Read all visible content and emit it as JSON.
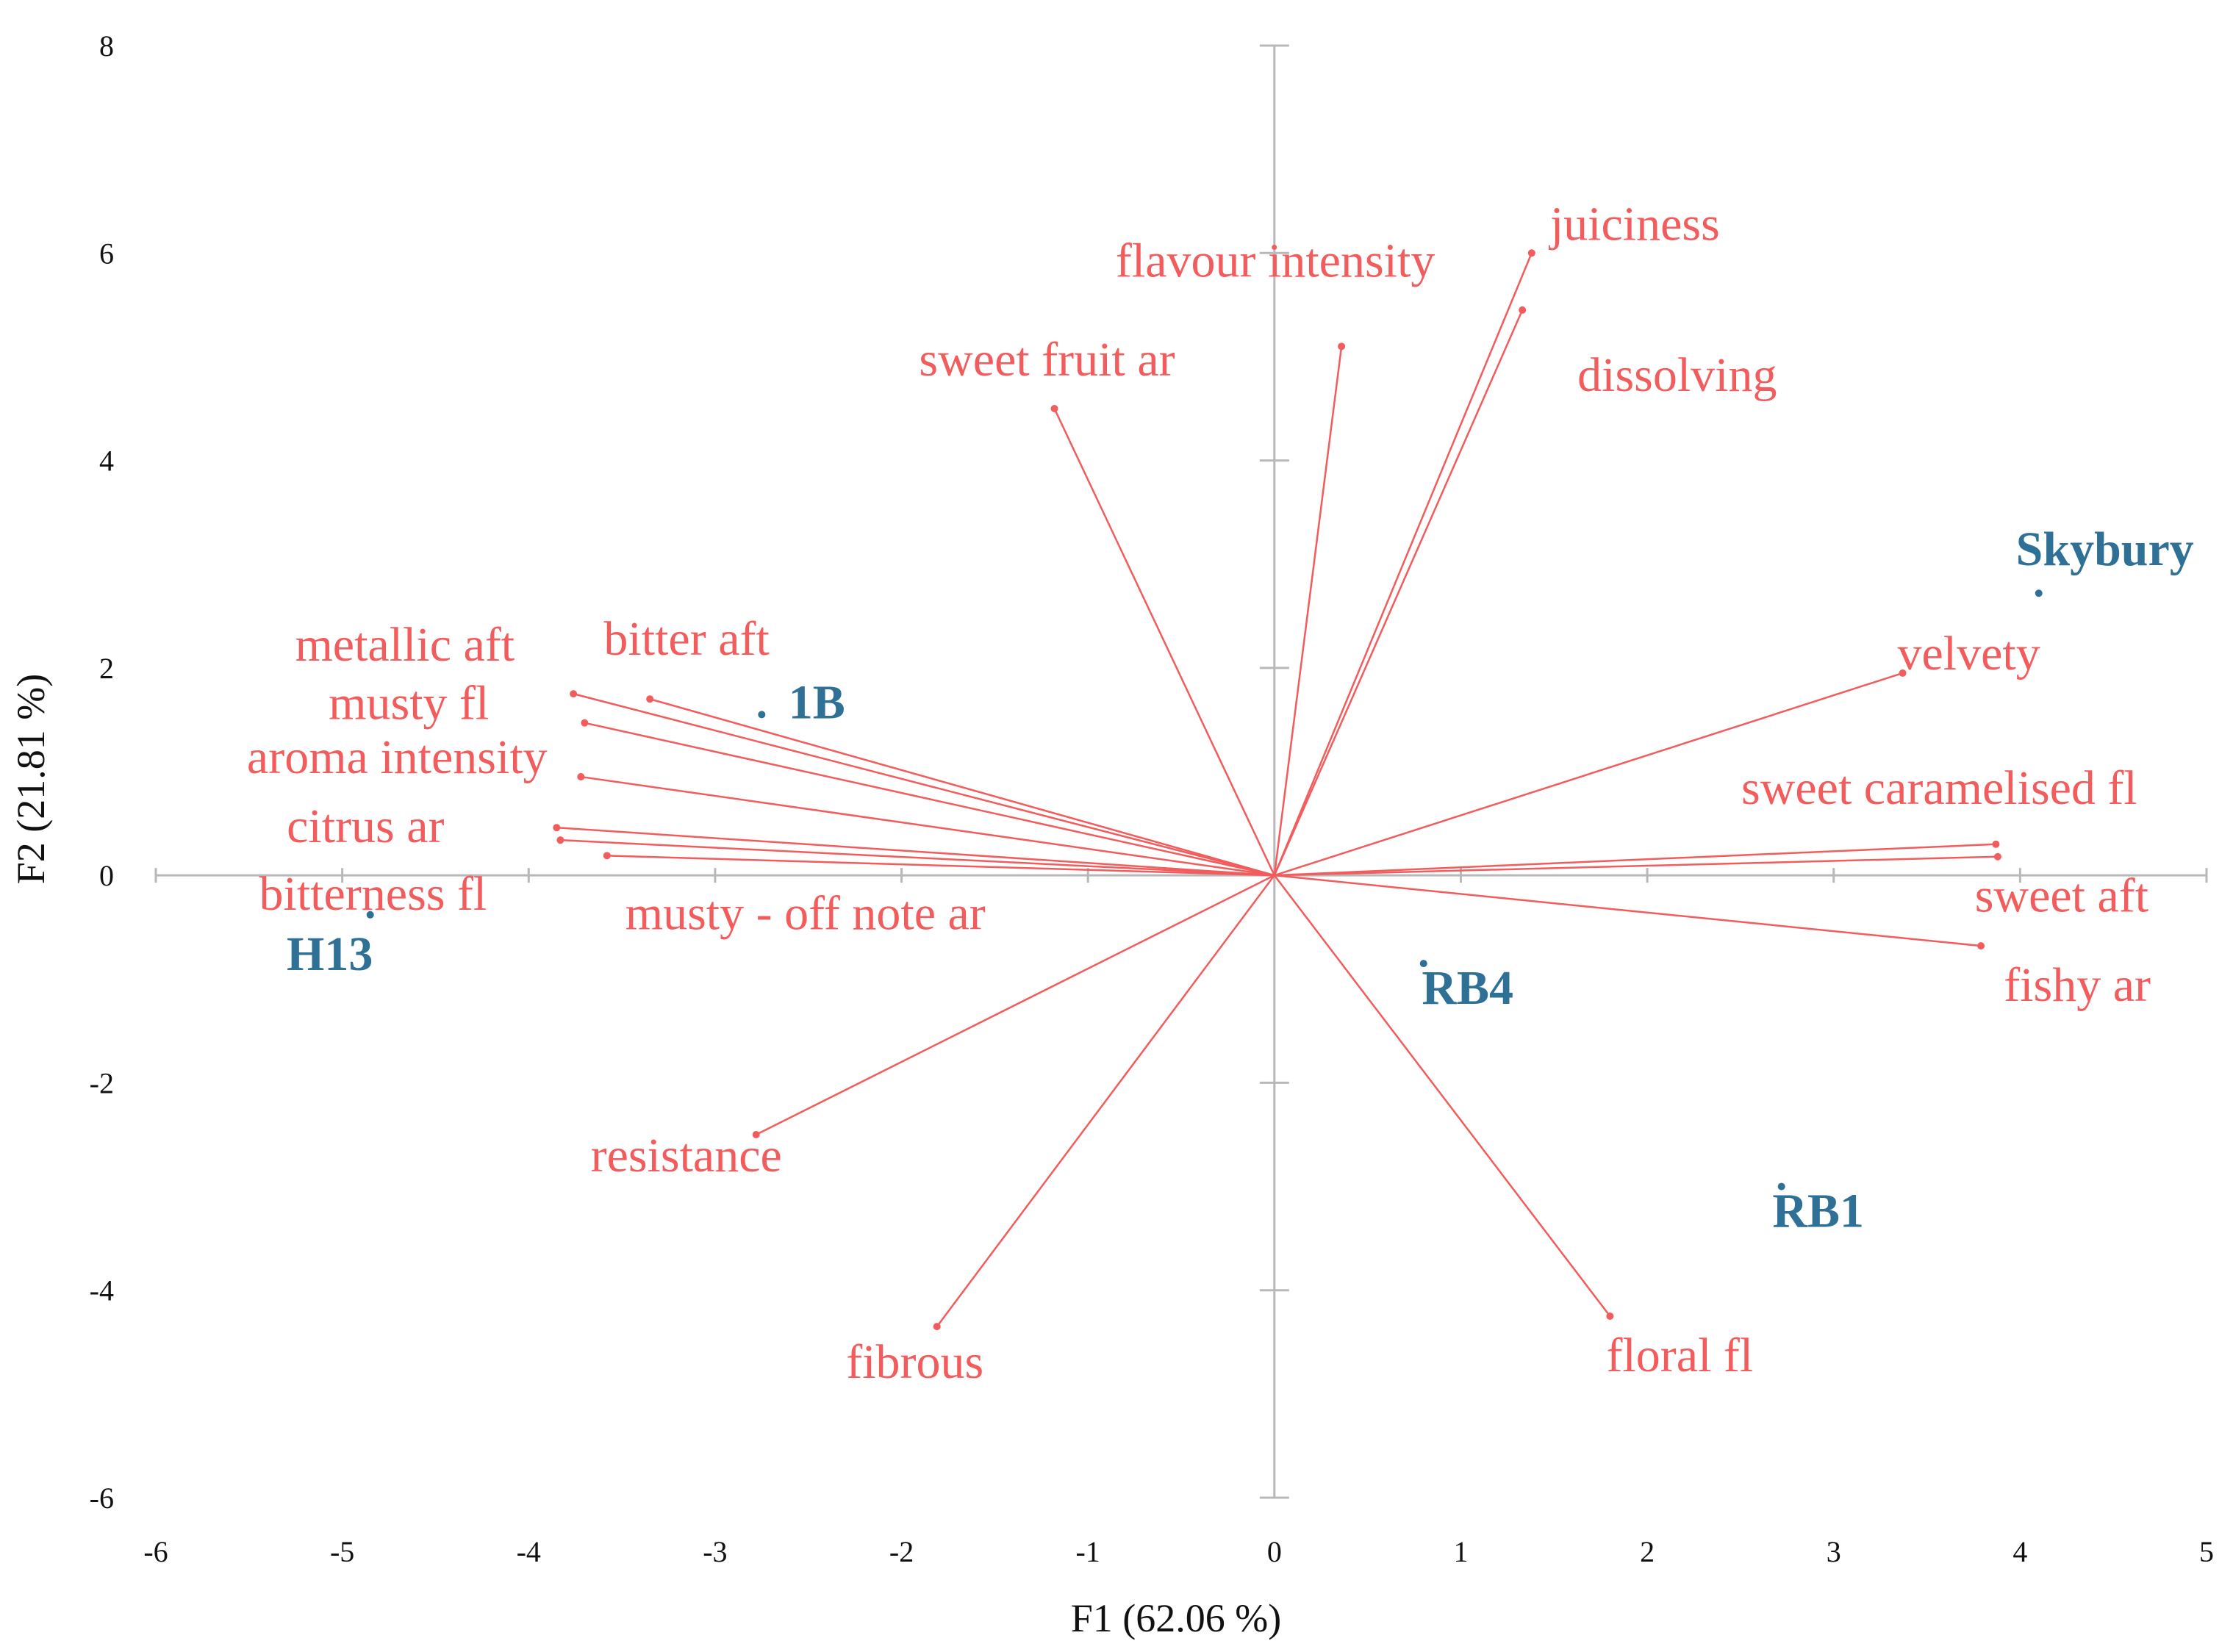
{
  "chart_data": {
    "type": "biplot",
    "xlabel": "F1 (62.06 %)",
    "ylabel": "F2 (21.81 %)",
    "xlim": [
      -6,
      5
    ],
    "ylim": [
      -6,
      8
    ],
    "x_ticks": [
      "-6",
      "-5",
      "-4",
      "-3",
      "-2",
      "-1",
      "0",
      "1",
      "2",
      "3",
      "4",
      "5"
    ],
    "y_ticks": [
      "-6",
      "-4",
      "-2",
      "0",
      "2",
      "4",
      "6",
      "8"
    ],
    "variable_color": "#f25c5c",
    "observation_color": "#2e7096",
    "variables": [
      {
        "label": "juiciness",
        "x": 1.38,
        "y": 6.0
      },
      {
        "label": "dissolving",
        "x": 1.33,
        "y": 5.45
      },
      {
        "label": "flavour intensity",
        "x": 0.36,
        "y": 5.1
      },
      {
        "label": "sweet fruit ar",
        "x": -1.18,
        "y": 4.5
      },
      {
        "label": "bitter aft",
        "x": -3.35,
        "y": 1.7
      },
      {
        "label": "metallic aft",
        "x": -3.76,
        "y": 1.75
      },
      {
        "label": "musty fl",
        "x": -3.7,
        "y": 1.47
      },
      {
        "label": "aroma intensity",
        "x": -3.72,
        "y": 0.95
      },
      {
        "label": "citrus ar",
        "x": -3.85,
        "y": 0.46
      },
      {
        "label": "bitterness fl",
        "x": -3.83,
        "y": 0.34
      },
      {
        "label": "musty - off note ar",
        "x": -3.58,
        "y": 0.19
      },
      {
        "label": "resistance",
        "x": -2.78,
        "y": -2.5
      },
      {
        "label": "fibrous",
        "x": -1.81,
        "y": -4.35
      },
      {
        "label": "velvety",
        "x": 3.37,
        "y": 1.95
      },
      {
        "label": "sweet caramelised fl",
        "x": 3.87,
        "y": 0.3
      },
      {
        "label": "sweet aft",
        "x": 3.88,
        "y": 0.18
      },
      {
        "label": "fishy ar",
        "x": 3.79,
        "y": -0.68
      },
      {
        "label": "floral fl",
        "x": 1.8,
        "y": -4.25
      }
    ],
    "observations": [
      {
        "label": "Skybury",
        "x": 4.1,
        "y": 2.72
      },
      {
        "label": "1B",
        "x": -2.75,
        "y": 1.55
      },
      {
        "label": "H13",
        "x": -4.85,
        "y": -0.38
      },
      {
        "label": "RB4",
        "x": 0.8,
        "y": -0.85
      },
      {
        "label": "RB1",
        "x": 2.72,
        "y": -3.0
      }
    ]
  }
}
